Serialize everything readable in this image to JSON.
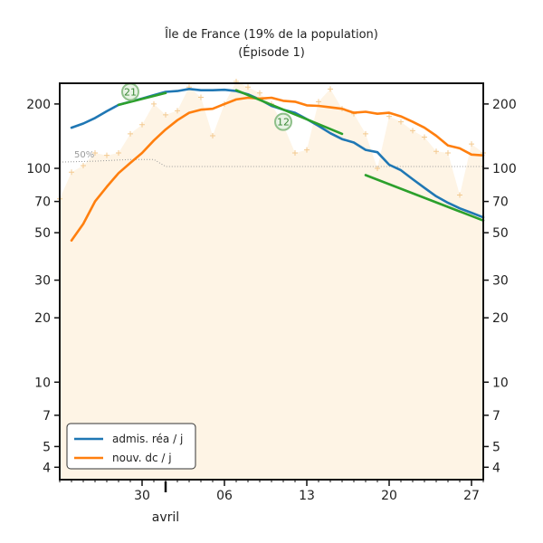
{
  "chart_data": {
    "type": "line",
    "title": "Île de France (19% de la population)",
    "subtitle": "(Épisode 1)",
    "y_scale": "log",
    "ylim": [
      3.5,
      250
    ],
    "y_ticks": [
      {
        "value": 200,
        "label": "200"
      },
      {
        "value": 100,
        "label": "100"
      },
      {
        "value": 70,
        "label": "70"
      },
      {
        "value": 50,
        "label": "50"
      },
      {
        "value": 30,
        "label": "30"
      },
      {
        "value": 20,
        "label": "20"
      },
      {
        "value": 10,
        "label": "10"
      },
      {
        "value": 7,
        "label": "7"
      },
      {
        "value": 5,
        "label": "5"
      },
      {
        "value": 4,
        "label": "4"
      }
    ],
    "x_ticks": [
      {
        "date": "2020-03-30",
        "label": "30"
      },
      {
        "date": "2020-04-06",
        "label": "06"
      },
      {
        "date": "2020-04-13",
        "label": "13"
      },
      {
        "date": "2020-04-20",
        "label": "20"
      },
      {
        "date": "2020-04-27",
        "label": "27"
      }
    ],
    "month_label": {
      "date": "2020-04-01",
      "label": "avril"
    },
    "xlim": [
      "2020-03-23",
      "2020-04-28"
    ],
    "series": [
      {
        "name": "admis. réa / j",
        "color": "#1f77b4",
        "points": [
          [
            "2020-03-24",
            155
          ],
          [
            "2020-03-25",
            162
          ],
          [
            "2020-03-26",
            172
          ],
          [
            "2020-03-27",
            185
          ],
          [
            "2020-03-28",
            198
          ],
          [
            "2020-03-29",
            205
          ],
          [
            "2020-03-30",
            212
          ],
          [
            "2020-03-31",
            220
          ],
          [
            "2020-04-01",
            228
          ],
          [
            "2020-04-02",
            230
          ],
          [
            "2020-04-03",
            235
          ],
          [
            "2020-04-04",
            232
          ],
          [
            "2020-04-05",
            232
          ],
          [
            "2020-04-06",
            233
          ],
          [
            "2020-04-07",
            230
          ],
          [
            "2020-04-08",
            222
          ],
          [
            "2020-04-09",
            210
          ],
          [
            "2020-04-10",
            196
          ],
          [
            "2020-04-11",
            188
          ],
          [
            "2020-04-12",
            182
          ],
          [
            "2020-04-13",
            170
          ],
          [
            "2020-04-14",
            158
          ],
          [
            "2020-04-15",
            146
          ],
          [
            "2020-04-16",
            137
          ],
          [
            "2020-04-17",
            132
          ],
          [
            "2020-04-18",
            122
          ],
          [
            "2020-04-19",
            119
          ],
          [
            "2020-04-20",
            104
          ],
          [
            "2020-04-21",
            98
          ],
          [
            "2020-04-22",
            89
          ],
          [
            "2020-04-23",
            81
          ],
          [
            "2020-04-24",
            74
          ],
          [
            "2020-04-25",
            69
          ],
          [
            "2020-04-26",
            65
          ],
          [
            "2020-04-27",
            62
          ],
          [
            "2020-04-28",
            59
          ]
        ]
      },
      {
        "name": "nouv. dc / j",
        "color": "#ff7f0e",
        "points": [
          [
            "2020-03-24",
            46
          ],
          [
            "2020-03-25",
            55
          ],
          [
            "2020-03-26",
            70
          ],
          [
            "2020-03-27",
            82
          ],
          [
            "2020-03-28",
            95
          ],
          [
            "2020-03-29",
            106
          ],
          [
            "2020-03-30",
            118
          ],
          [
            "2020-03-31",
            135
          ],
          [
            "2020-04-01",
            152
          ],
          [
            "2020-04-02",
            168
          ],
          [
            "2020-04-03",
            182
          ],
          [
            "2020-04-04",
            188
          ],
          [
            "2020-04-05",
            190
          ],
          [
            "2020-04-06",
            200
          ],
          [
            "2020-04-07",
            210
          ],
          [
            "2020-04-08",
            214
          ],
          [
            "2020-04-09",
            212
          ],
          [
            "2020-04-10",
            214
          ],
          [
            "2020-04-11",
            207
          ],
          [
            "2020-04-12",
            205
          ],
          [
            "2020-04-13",
            197
          ],
          [
            "2020-04-14",
            196
          ],
          [
            "2020-04-15",
            193
          ],
          [
            "2020-04-16",
            190
          ],
          [
            "2020-04-17",
            182
          ],
          [
            "2020-04-18",
            184
          ],
          [
            "2020-04-19",
            180
          ],
          [
            "2020-04-20",
            182
          ],
          [
            "2020-04-21",
            175
          ],
          [
            "2020-04-22",
            165
          ],
          [
            "2020-04-23",
            155
          ],
          [
            "2020-04-24",
            142
          ],
          [
            "2020-04-25",
            128
          ],
          [
            "2020-04-26",
            124
          ],
          [
            "2020-04-27",
            116
          ],
          [
            "2020-04-28",
            115
          ]
        ]
      }
    ],
    "trend_segments": [
      {
        "color": "#2ca02c",
        "label": "21",
        "points": [
          [
            "2020-03-28",
            198
          ],
          [
            "2020-04-01",
            225
          ]
        ],
        "label_at": [
          "2020-03-29",
          228
        ]
      },
      {
        "color": "#2ca02c",
        "label": "12",
        "points": [
          [
            "2020-04-07",
            232
          ],
          [
            "2020-04-16",
            145
          ]
        ],
        "label_at": [
          "2020-04-11",
          165
        ]
      },
      {
        "color": "#2ca02c",
        "points": [
          [
            "2020-04-18",
            93
          ],
          [
            "2020-04-28",
            57
          ]
        ]
      }
    ],
    "background_area": {
      "color": "#fdebd0",
      "points": [
        [
          "2020-03-23",
          72
        ],
        [
          "2020-03-24",
          96
        ],
        [
          "2020-03-25",
          103
        ],
        [
          "2020-03-26",
          118
        ],
        [
          "2020-03-27",
          115
        ],
        [
          "2020-03-28",
          118
        ],
        [
          "2020-03-29",
          145
        ],
        [
          "2020-03-30",
          160
        ],
        [
          "2020-03-31",
          200
        ],
        [
          "2020-04-01",
          178
        ],
        [
          "2020-04-02",
          186
        ],
        [
          "2020-04-03",
          240
        ],
        [
          "2020-04-04",
          215
        ],
        [
          "2020-04-05",
          142
        ],
        [
          "2020-04-06",
          200
        ],
        [
          "2020-04-07",
          255
        ],
        [
          "2020-04-08",
          240
        ],
        [
          "2020-04-09",
          225
        ],
        [
          "2020-04-10",
          200
        ],
        [
          "2020-04-11",
          160
        ],
        [
          "2020-04-12",
          118
        ],
        [
          "2020-04-13",
          122
        ],
        [
          "2020-04-14",
          205
        ],
        [
          "2020-04-15",
          235
        ],
        [
          "2020-04-16",
          190
        ],
        [
          "2020-04-17",
          180
        ],
        [
          "2020-04-18",
          145
        ],
        [
          "2020-04-19",
          100
        ],
        [
          "2020-04-20",
          175
        ],
        [
          "2020-04-21",
          165
        ],
        [
          "2020-04-22",
          150
        ],
        [
          "2020-04-23",
          140
        ],
        [
          "2020-04-24",
          120
        ],
        [
          "2020-04-25",
          118
        ],
        [
          "2020-04-26",
          75
        ],
        [
          "2020-04-27",
          130
        ],
        [
          "2020-04-28",
          118
        ]
      ]
    },
    "reference_line": {
      "label": "50%",
      "color": "#9a9a9a",
      "points": [
        [
          "2020-03-23",
          107
        ],
        [
          "2020-03-26",
          108
        ],
        [
          "2020-03-29",
          110
        ],
        [
          "2020-03-31",
          110
        ],
        [
          "2020-04-01",
          102
        ],
        [
          "2020-04-06",
          102
        ],
        [
          "2020-04-13",
          102
        ],
        [
          "2020-04-20",
          102
        ],
        [
          "2020-04-28",
          102
        ]
      ]
    },
    "legend": {
      "position": "lower-left",
      "entries": [
        {
          "label": "admis. réa / j",
          "color": "#1f77b4"
        },
        {
          "label": "nouv. dc / j",
          "color": "#ff7f0e"
        }
      ]
    },
    "grid": false
  }
}
